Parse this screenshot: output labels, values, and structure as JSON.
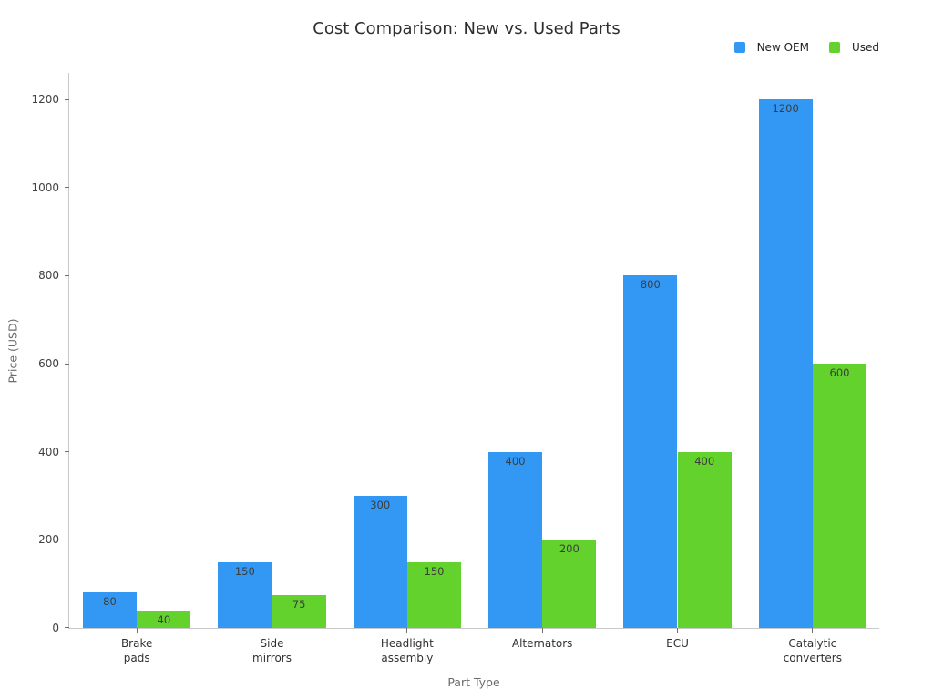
{
  "chart_data": {
    "type": "bar",
    "title": "Cost Comparison: New vs. Used Parts",
    "xlabel": "Part Type",
    "ylabel": "Price (USD)",
    "categories": [
      "Brake\npads",
      "Side\nmirrors",
      "Headlight\nassembly",
      "Alternators",
      "ECU",
      "Catalytic\nconverters"
    ],
    "series": [
      {
        "name": "New OEM",
        "color": "#3398f3",
        "values": [
          80,
          150,
          300,
          400,
          800,
          1200
        ]
      },
      {
        "name": "Used",
        "color": "#64d22d",
        "values": [
          40,
          75,
          150,
          200,
          400,
          600
        ]
      }
    ],
    "ylim": [
      0,
      1200
    ],
    "yticks": [
      0,
      200,
      400,
      600,
      800,
      1000,
      1200
    ],
    "grid": false,
    "legend_position": "top-right",
    "bar_value_labels": true
  }
}
